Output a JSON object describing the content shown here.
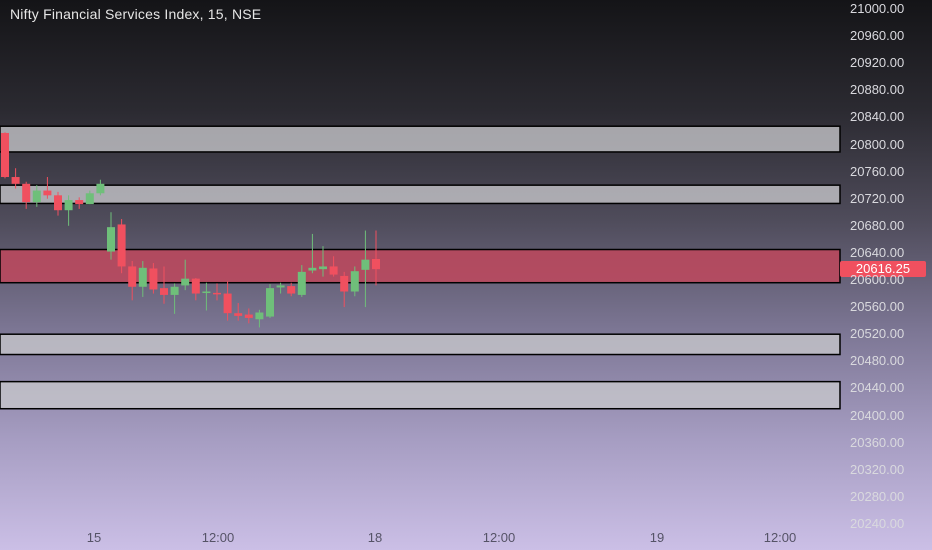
{
  "header": {
    "title": "Nifty Financial Services Index, 15, NSE"
  },
  "last_price": "20616.25",
  "colors": {
    "up": "#6fbf7a",
    "down": "#f0505f",
    "zone_fill": "#c8c8cc",
    "active_zone_fill": "#c0485d",
    "zone_border": "#000000"
  },
  "chart_data": {
    "type": "candlestick",
    "title": "Nifty Financial Services Index, 15, NSE",
    "y_ticks": [
      "21000.00",
      "20960.00",
      "20920.00",
      "20880.00",
      "20840.00",
      "20800.00",
      "20760.00",
      "20720.00",
      "20680.00",
      "20640.00",
      "20600.00",
      "20560.00",
      "20520.00",
      "20480.00",
      "20440.00",
      "20400.00",
      "20360.00",
      "20320.00",
      "20280.00",
      "20240.00"
    ],
    "x_ticks": [
      "15",
      "12:00",
      "18",
      "12:00",
      "19",
      "12:00"
    ],
    "ylim": [
      20240,
      21000
    ],
    "zones": [
      {
        "low": 20789,
        "high": 20827,
        "active": false
      },
      {
        "low": 20713,
        "high": 20740,
        "active": false
      },
      {
        "low": 20596,
        "high": 20645,
        "active": true
      },
      {
        "low": 20490,
        "high": 20520,
        "active": false
      },
      {
        "low": 20410,
        "high": 20450,
        "active": false
      }
    ],
    "candles": [
      {
        "o": 20817,
        "h": 20818,
        "l": 20750,
        "c": 20752
      },
      {
        "o": 20752,
        "h": 20765,
        "l": 20735,
        "c": 20742
      },
      {
        "o": 20742,
        "h": 20745,
        "l": 20705,
        "c": 20715
      },
      {
        "o": 20715,
        "h": 20740,
        "l": 20708,
        "c": 20732
      },
      {
        "o": 20732,
        "h": 20752,
        "l": 20720,
        "c": 20725
      },
      {
        "o": 20725,
        "h": 20730,
        "l": 20695,
        "c": 20703
      },
      {
        "o": 20703,
        "h": 20725,
        "l": 20680,
        "c": 20718
      },
      {
        "o": 20718,
        "h": 20722,
        "l": 20705,
        "c": 20712
      },
      {
        "o": 20712,
        "h": 20732,
        "l": 20712,
        "c": 20728
      },
      {
        "o": 20728,
        "h": 20748,
        "l": 20725,
        "c": 20742
      },
      {
        "o": 20642,
        "h": 20700,
        "l": 20630,
        "c": 20678
      },
      {
        "o": 20682,
        "h": 20690,
        "l": 20610,
        "c": 20620
      },
      {
        "o": 20620,
        "h": 20628,
        "l": 20570,
        "c": 20590
      },
      {
        "o": 20590,
        "h": 20628,
        "l": 20575,
        "c": 20618
      },
      {
        "o": 20617,
        "h": 20625,
        "l": 20580,
        "c": 20586
      },
      {
        "o": 20588,
        "h": 20620,
        "l": 20565,
        "c": 20578
      },
      {
        "o": 20578,
        "h": 20595,
        "l": 20550,
        "c": 20590
      },
      {
        "o": 20592,
        "h": 20630,
        "l": 20585,
        "c": 20602
      },
      {
        "o": 20602,
        "h": 20603,
        "l": 20570,
        "c": 20580
      },
      {
        "o": 20582,
        "h": 20596,
        "l": 20555,
        "c": 20583
      },
      {
        "o": 20581,
        "h": 20595,
        "l": 20570,
        "c": 20580
      },
      {
        "o": 20580,
        "h": 20598,
        "l": 20540,
        "c": 20551
      },
      {
        "o": 20551,
        "h": 20566,
        "l": 20540,
        "c": 20547
      },
      {
        "o": 20549,
        "h": 20558,
        "l": 20536,
        "c": 20544
      },
      {
        "o": 20542,
        "h": 20556,
        "l": 20530,
        "c": 20552
      },
      {
        "o": 20546,
        "h": 20594,
        "l": 20544,
        "c": 20588
      },
      {
        "o": 20589,
        "h": 20596,
        "l": 20580,
        "c": 20592
      },
      {
        "o": 20591,
        "h": 20596,
        "l": 20576,
        "c": 20580
      },
      {
        "o": 20578,
        "h": 20622,
        "l": 20575,
        "c": 20612
      },
      {
        "o": 20614,
        "h": 20668,
        "l": 20610,
        "c": 20618
      },
      {
        "o": 20616,
        "h": 20650,
        "l": 20605,
        "c": 20620
      },
      {
        "o": 20620,
        "h": 20635,
        "l": 20605,
        "c": 20608
      },
      {
        "o": 20606,
        "h": 20612,
        "l": 20560,
        "c": 20583
      },
      {
        "o": 20583,
        "h": 20620,
        "l": 20576,
        "c": 20613
      },
      {
        "o": 20615,
        "h": 20673,
        "l": 20560,
        "c": 20630
      },
      {
        "o": 20631,
        "h": 20673,
        "l": 20592,
        "c": 20616
      }
    ]
  }
}
